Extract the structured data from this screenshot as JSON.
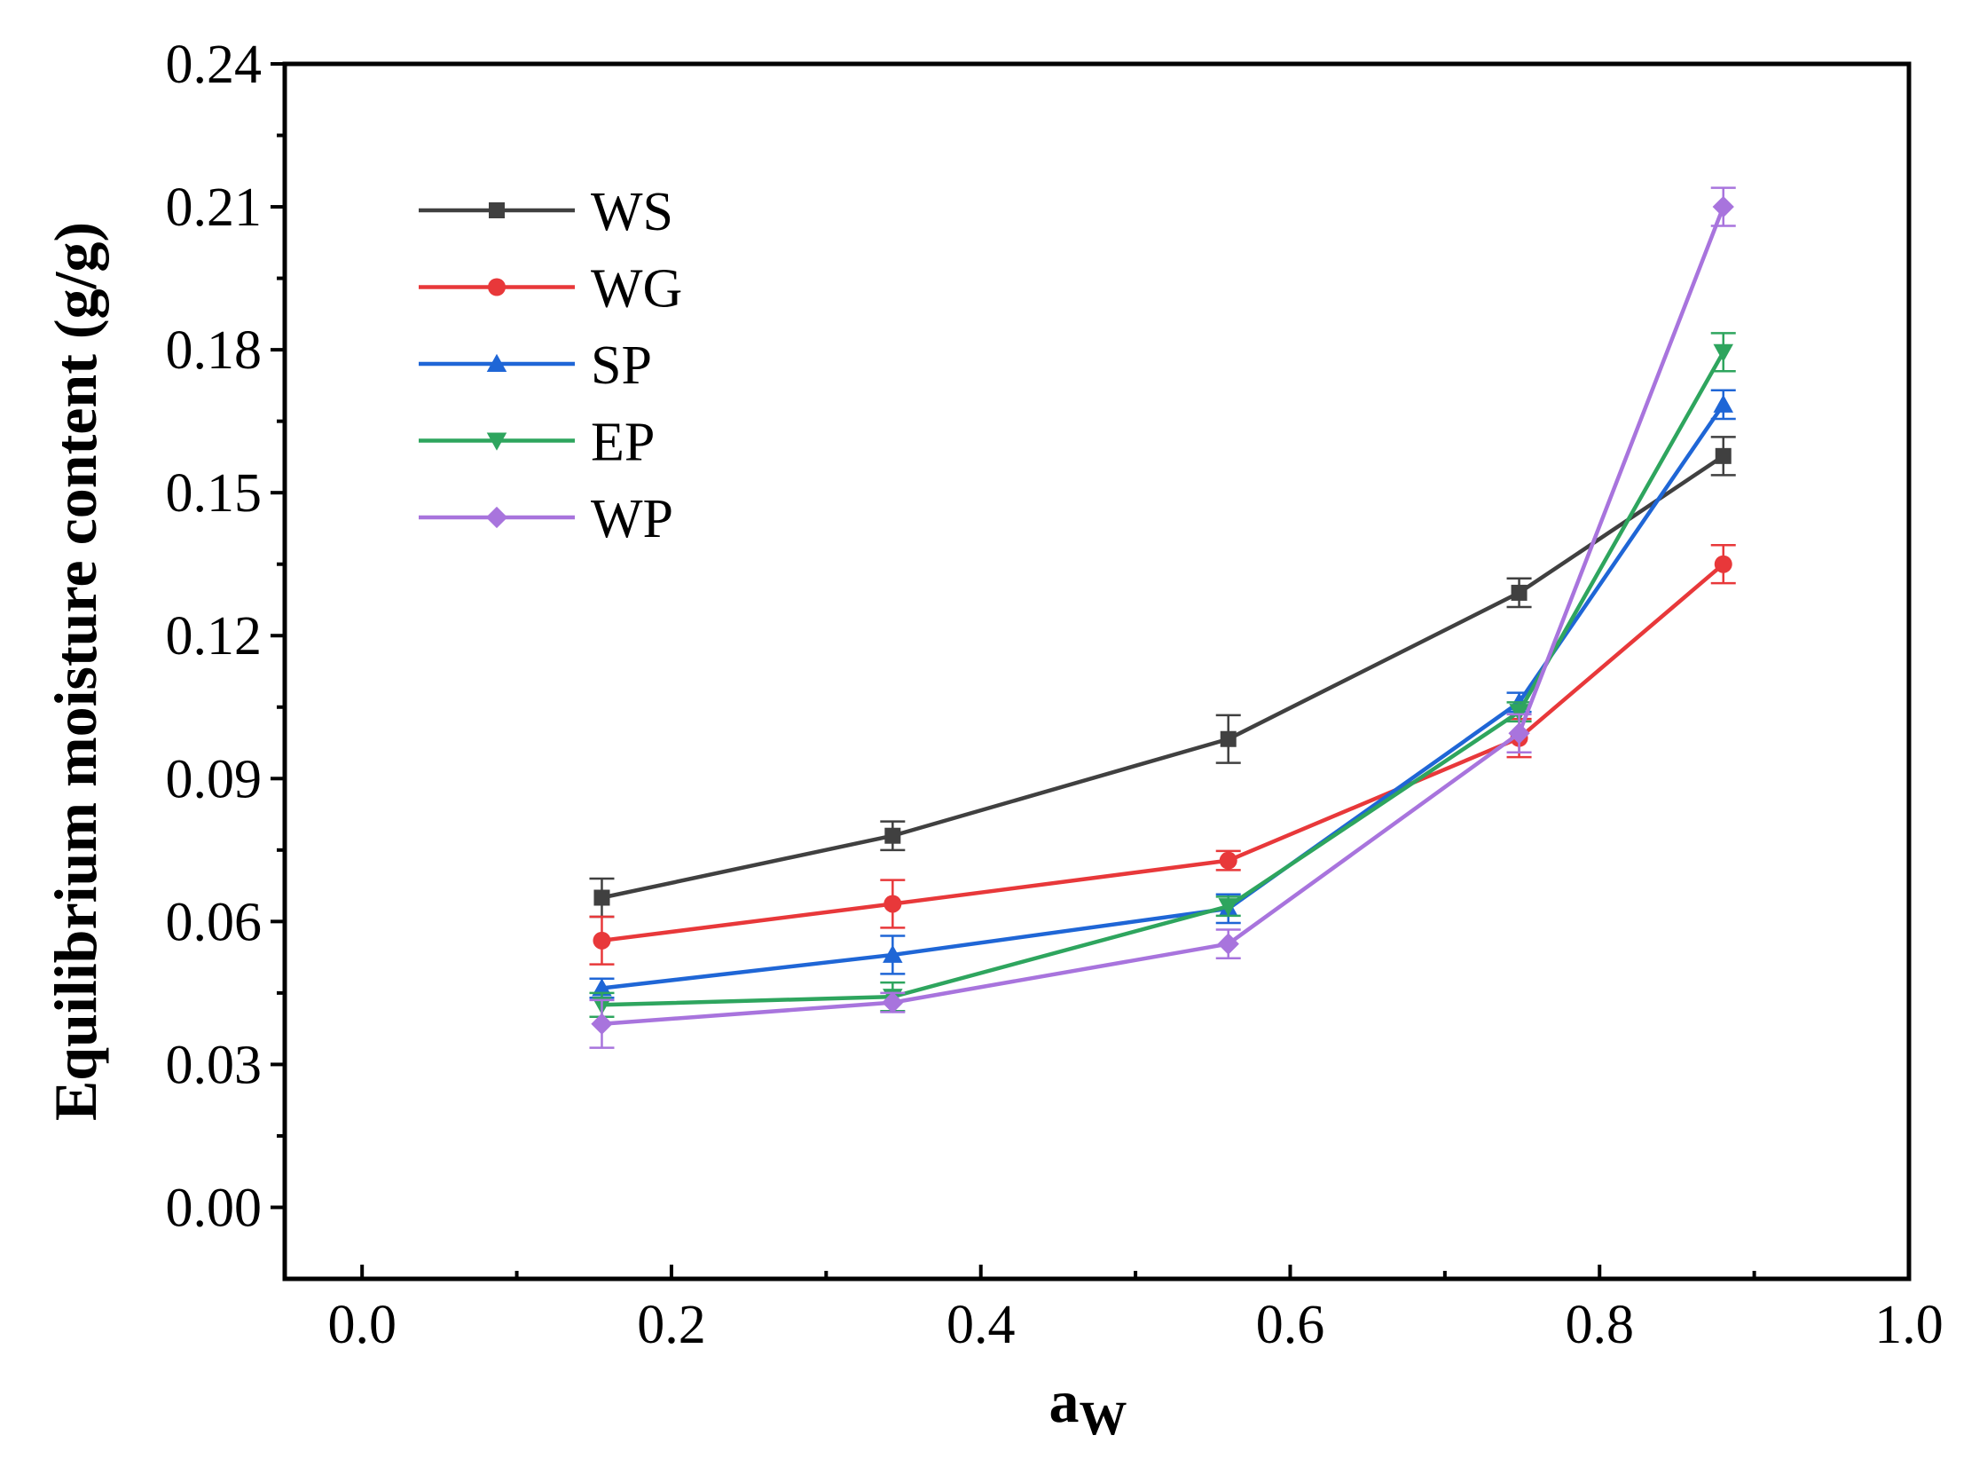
{
  "chart_data": {
    "type": "line",
    "title": "",
    "xlabel": "a",
    "xlabel_subscript": "W",
    "ylabel": "Equilibrium moisture content (g/g)",
    "xlim": [
      -0.05,
      1.0
    ],
    "ylim": [
      -0.015,
      0.24
    ],
    "xticks": [
      0.0,
      0.2,
      0.4,
      0.6,
      0.8,
      1.0
    ],
    "xtick_labels": [
      "0.0",
      "0.2",
      "0.4",
      "0.6",
      "0.8",
      "1.0"
    ],
    "yticks": [
      0.0,
      0.03,
      0.06,
      0.09,
      0.12,
      0.15,
      0.18,
      0.21,
      0.24
    ],
    "ytick_labels": [
      "0.00",
      "0.03",
      "0.06",
      "0.09",
      "0.12",
      "0.15",
      "0.18",
      "0.21",
      "0.24"
    ],
    "grid": false,
    "legend_position": "top-left",
    "x": [
      0.155,
      0.343,
      0.56,
      0.748,
      0.88
    ],
    "series": [
      {
        "name": "WS",
        "color": "#404040",
        "marker": "square",
        "values": [
          0.065,
          0.078,
          0.0983,
          0.129,
          0.1577
        ],
        "errors": [
          0.004,
          0.003,
          0.005,
          0.003,
          0.004
        ]
      },
      {
        "name": "WG",
        "color": "#e8383a",
        "marker": "circle",
        "values": [
          0.056,
          0.0637,
          0.0728,
          0.0985,
          0.135
        ],
        "errors": [
          0.005,
          0.005,
          0.002,
          0.004,
          0.004
        ]
      },
      {
        "name": "SP",
        "color": "#1f66d6",
        "marker": "triangle-up",
        "values": [
          0.046,
          0.053,
          0.0627,
          0.106,
          0.1685
        ],
        "errors": [
          0.002,
          0.004,
          0.003,
          0.002,
          0.003
        ]
      },
      {
        "name": "EP",
        "color": "#2ea55e",
        "marker": "triangle-down",
        "values": [
          0.0425,
          0.0442,
          0.0632,
          0.104,
          0.1795
        ],
        "errors": [
          0.0025,
          0.003,
          0.002,
          0.002,
          0.004
        ]
      },
      {
        "name": "WP",
        "color": "#a874dd",
        "marker": "diamond",
        "values": [
          0.0385,
          0.043,
          0.0553,
          0.0995,
          0.21
        ],
        "errors": [
          0.005,
          0.002,
          0.003,
          0.004,
          0.004
        ]
      }
    ]
  }
}
